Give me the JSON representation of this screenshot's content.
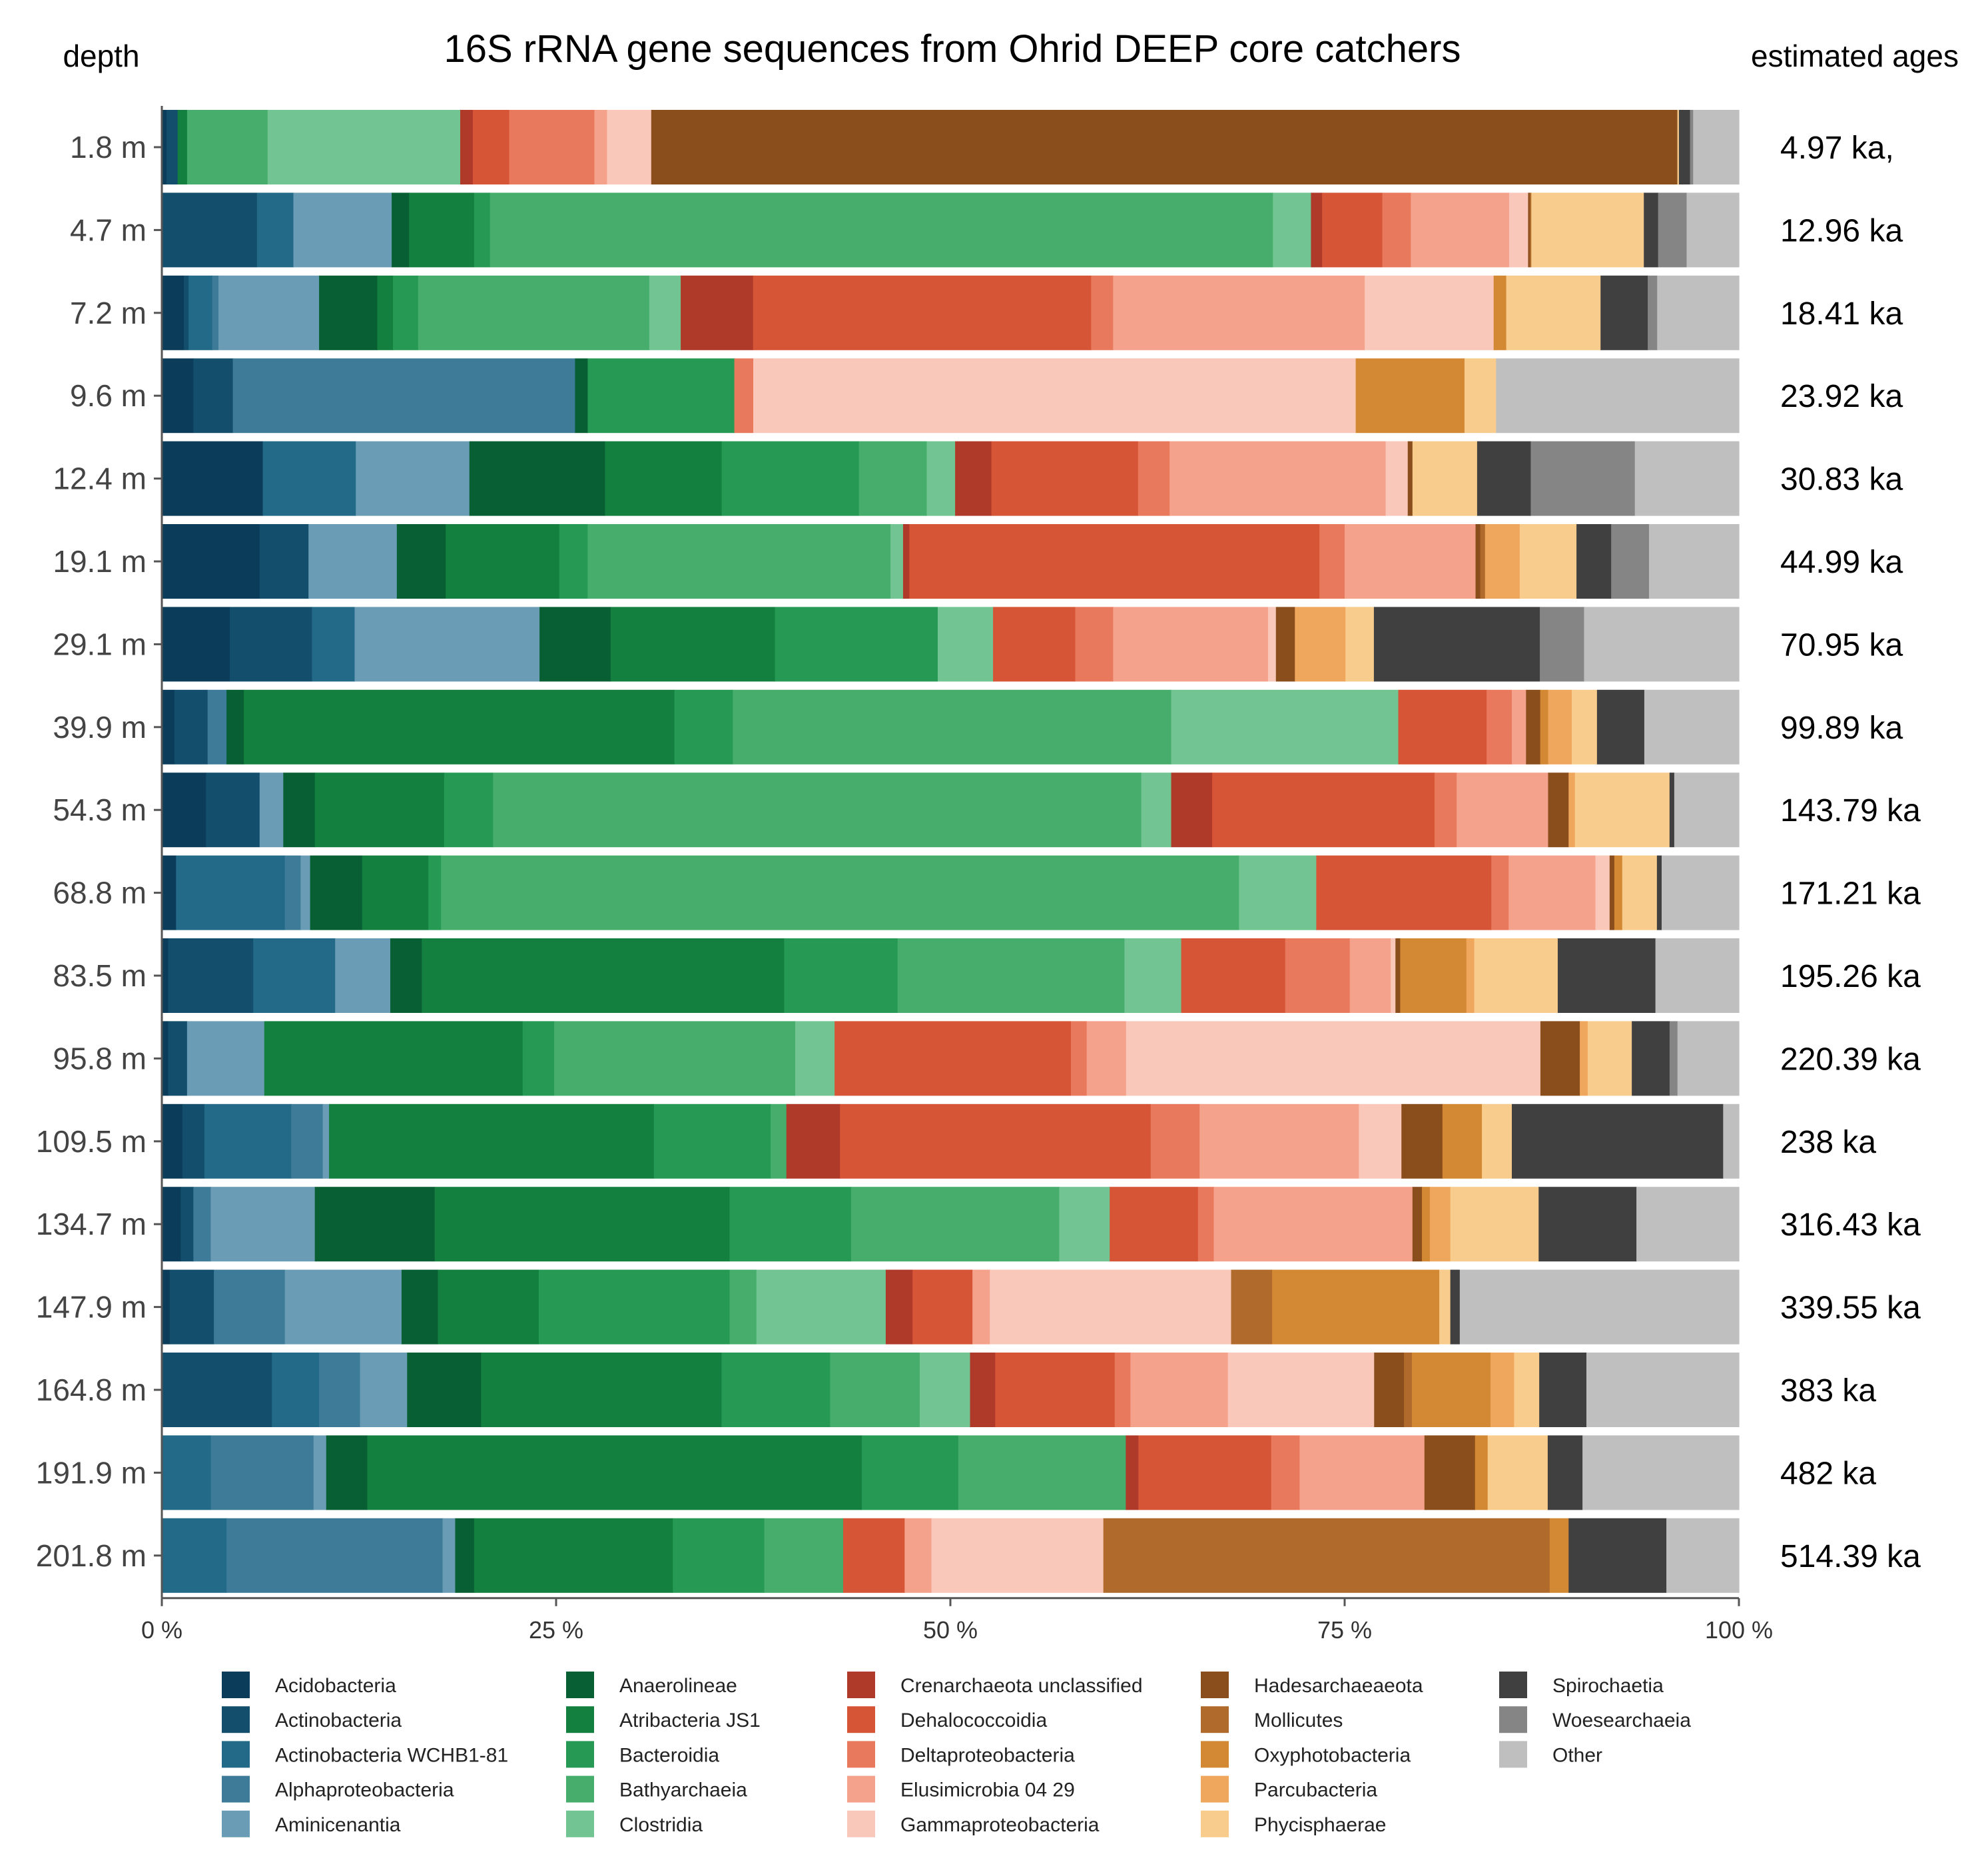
{
  "chart_data": {
    "type": "bar",
    "orientation": "horizontal",
    "stacked": true,
    "title": "16S rRNA gene sequences from Ohrid DEEP core catchers",
    "row_header_left": "depth",
    "row_header_right": "estimated ages",
    "xlim": [
      0,
      100
    ],
    "x_ticks": [
      {
        "value": 0,
        "label": "0 %"
      },
      {
        "value": 25,
        "label": "25 %"
      },
      {
        "value": 50,
        "label": "50 %"
      },
      {
        "value": 75,
        "label": "75 %"
      },
      {
        "value": 100,
        "label": "100 %"
      }
    ],
    "legend_position": "bottom",
    "taxa": [
      {
        "name": "Acidobacteria",
        "color": "#0b3d5a"
      },
      {
        "name": "Actinobacteria",
        "color": "#134f6c"
      },
      {
        "name": "Actinobacteria WCHB1-81",
        "color": "#236a88"
      },
      {
        "name": "Alphaproteobacteria",
        "color": "#3d7b98"
      },
      {
        "name": "Aminicenantia",
        "color": "#6a9db5"
      },
      {
        "name": "Anaerolineae",
        "color": "#075f33"
      },
      {
        "name": "Atribacteria JS1",
        "color": "#148040"
      },
      {
        "name": "Bacteroidia",
        "color": "#269a54"
      },
      {
        "name": "Bathyarchaeia",
        "color": "#46ad6c"
      },
      {
        "name": "Clostridia",
        "color": "#72c592"
      },
      {
        "name": "Crenarchaeota unclassified",
        "color": "#b03a2a"
      },
      {
        "name": "Dehalococcoidia",
        "color": "#d65536"
      },
      {
        "name": "Deltaproteobacteria",
        "color": "#e8795c"
      },
      {
        "name": "Elusimicrobia 04 29",
        "color": "#f4a28c"
      },
      {
        "name": "Gammaproteobacteria",
        "color": "#f9c8ba"
      },
      {
        "name": "Hadesarchaeaeota",
        "color": "#8a4d1c"
      },
      {
        "name": "Mollicutes",
        "color": "#b06b2c"
      },
      {
        "name": "Oxyphotobacteria",
        "color": "#d38933"
      },
      {
        "name": "Parcubacteria",
        "color": "#eea75c"
      },
      {
        "name": "Phycisphaerae",
        "color": "#f8cc8c"
      },
      {
        "name": "Spirochaetia",
        "color": "#404040"
      },
      {
        "name": "Woesearchaeia",
        "color": "#858585"
      },
      {
        "name": "Other",
        "color": "#bfbfbf"
      }
    ],
    "samples": [
      {
        "depth": "1.8 m",
        "age": "4.97 ka,",
        "values": [
          0.3,
          0.7,
          0,
          0,
          0,
          0,
          0.6,
          0,
          5.1,
          12.2,
          0.8,
          2.3,
          5.4,
          0.8,
          2.8,
          65.0,
          0,
          0,
          0,
          0.1,
          0.7,
          0.2,
          2.9
        ]
      },
      {
        "depth": "4.7 m",
        "age": "12.96 ka",
        "values": [
          0,
          6.0,
          2.3,
          0,
          6.2,
          1.1,
          4.1,
          1.0,
          49.4,
          2.4,
          0.7,
          3.8,
          1.8,
          6.2,
          1.2,
          0.1,
          0.1,
          0,
          0,
          7.1,
          0.9,
          1.8,
          3.3
        ]
      },
      {
        "depth": "7.2 m",
        "age": "18.41 ka",
        "values": [
          1.4,
          0.3,
          1.5,
          0.4,
          6.4,
          3.7,
          1.0,
          1.6,
          14.7,
          2.0,
          4.6,
          21.5,
          1.4,
          16.0,
          8.2,
          0,
          0,
          0.8,
          0,
          6.0,
          3.0,
          0.6,
          5.2
        ]
      },
      {
        "depth": "9.6 m",
        "age": "23.92 ka",
        "values": [
          2.0,
          2.5,
          0,
          21.7,
          0,
          0.8,
          0,
          9.3,
          0,
          0,
          0,
          0,
          1.2,
          0,
          38.2,
          0,
          0,
          6.9,
          0,
          2.0,
          0,
          0,
          15.4
        ]
      },
      {
        "depth": "12.4 m",
        "age": "30.83 ka",
        "values": [
          6.4,
          0,
          5.9,
          0,
          7.2,
          8.6,
          7.4,
          8.7,
          4.3,
          1.8,
          2.3,
          9.3,
          2.0,
          13.7,
          1.4,
          0.3,
          0,
          0,
          0,
          4.1,
          3.4,
          6.6,
          6.6
        ]
      },
      {
        "depth": "19.1 m",
        "age": "44.99 ka",
        "values": [
          6.2,
          3.1,
          0,
          0,
          5.6,
          3.1,
          7.2,
          1.8,
          19.2,
          0.8,
          0.4,
          26.0,
          1.6,
          8.3,
          0,
          0.3,
          0.3,
          0,
          2.2,
          3.6,
          2.2,
          2.4,
          5.7
        ]
      },
      {
        "depth": "29.1 m",
        "age": "70.95 ka",
        "values": [
          4.3,
          5.2,
          2.7,
          0,
          11.7,
          4.5,
          10.4,
          10.3,
          0,
          3.5,
          0,
          5.2,
          2.4,
          9.8,
          0.5,
          1.2,
          0,
          0,
          3.2,
          1.8,
          10.5,
          2.8,
          9.8
        ]
      },
      {
        "depth": "39.9 m",
        "age": "99.89 ka",
        "values": [
          0.8,
          2.1,
          0,
          1.2,
          0,
          1.1,
          27.3,
          3.7,
          27.8,
          14.4,
          0,
          5.6,
          1.6,
          0.9,
          0,
          0.9,
          0,
          0.5,
          1.5,
          1.6,
          3.0,
          0,
          6.0
        ]
      },
      {
        "depth": "54.3 m",
        "age": "143.79 ka",
        "values": [
          2.8,
          3.4,
          0,
          0,
          1.5,
          2.0,
          8.2,
          3.1,
          41.1,
          1.9,
          2.6,
          14.1,
          1.4,
          5.8,
          0,
          1.3,
          0,
          0,
          0.4,
          6.0,
          0.3,
          0,
          4.1
        ]
      },
      {
        "depth": "68.8 m",
        "age": "171.21 ka",
        "values": [
          0.9,
          0,
          6.9,
          1.0,
          0.6,
          3.3,
          4.2,
          0.8,
          50.6,
          4.9,
          0,
          11.1,
          1.1,
          5.5,
          0.9,
          0.3,
          0,
          0.5,
          0,
          2.2,
          0.3,
          0,
          4.9
        ]
      },
      {
        "depth": "83.5 m",
        "age": "195.26 ka",
        "values": [
          0.4,
          5.4,
          5.2,
          0,
          3.5,
          2.0,
          23.0,
          7.2,
          14.4,
          3.6,
          0,
          6.6,
          4.1,
          2.6,
          0.3,
          0.3,
          0,
          4.2,
          0.5,
          5.3,
          6.2,
          0,
          5.3
        ]
      },
      {
        "depth": "95.8 m",
        "age": "220.39 ka",
        "values": [
          0.4,
          1.2,
          0,
          0,
          4.9,
          0,
          16.4,
          2.0,
          15.3,
          2.5,
          0,
          15.0,
          1.0,
          2.5,
          26.3,
          2.5,
          0,
          0,
          0.5,
          2.8,
          2.4,
          0.5,
          3.9
        ]
      },
      {
        "depth": "109.5 m",
        "age": "238 ka",
        "values": [
          1.3,
          1.4,
          5.5,
          2.0,
          0.4,
          0,
          20.6,
          7.4,
          1.0,
          0,
          3.4,
          19.7,
          3.1,
          10.1,
          2.7,
          2.6,
          0,
          2.5,
          0,
          1.9,
          13.4,
          0,
          1.0
        ]
      },
      {
        "depth": "134.7 m",
        "age": "316.43 ka",
        "values": [
          1.2,
          0.8,
          0,
          1.1,
          6.6,
          7.6,
          18.7,
          7.7,
          13.2,
          3.2,
          0,
          5.6,
          1.0,
          12.6,
          0,
          0.6,
          0,
          0.5,
          1.3,
          5.6,
          6.2,
          0,
          6.5
        ]
      },
      {
        "depth": "147.9 m",
        "age": "339.55 ka",
        "values": [
          0.5,
          2.8,
          0,
          4.5,
          7.4,
          2.3,
          6.4,
          12.1,
          1.7,
          8.2,
          1.7,
          3.8,
          0,
          1.1,
          15.3,
          0,
          2.6,
          10.6,
          0,
          0.7,
          0.6,
          0,
          17.7
        ]
      },
      {
        "depth": "164.8 m",
        "age": "383 ka",
        "values": [
          0,
          7.0,
          3.0,
          2.6,
          3.0,
          4.7,
          15.3,
          6.9,
          5.7,
          3.2,
          1.6,
          7.6,
          1.0,
          6.2,
          9.3,
          1.9,
          0.5,
          5.0,
          1.5,
          1.6,
          3.0,
          0,
          9.7
        ]
      },
      {
        "depth": "191.9 m",
        "age": "482 ka",
        "values": [
          0,
          0,
          3.1,
          6.5,
          0.8,
          2.6,
          31.3,
          6.1,
          10.6,
          0,
          0.8,
          8.4,
          1.8,
          7.9,
          0,
          3.2,
          0,
          0.8,
          0,
          3.8,
          2.2,
          0,
          9.9
        ]
      },
      {
        "depth": "201.8 m",
        "age": "514.39 ka",
        "values": [
          0,
          0,
          4.1,
          13.7,
          0.8,
          1.2,
          12.6,
          5.8,
          5.0,
          0,
          0,
          3.9,
          0,
          1.7,
          10.9,
          0,
          28.3,
          1.2,
          0,
          0,
          6.2,
          0,
          4.6
        ]
      }
    ]
  }
}
